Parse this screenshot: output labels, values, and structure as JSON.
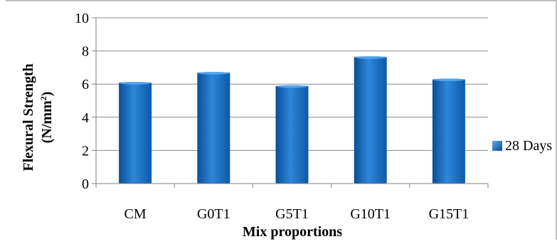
{
  "chart_data": {
    "type": "bar",
    "categories": [
      "CM",
      "G0T1",
      "G5T1",
      "G10T1",
      "G15T1"
    ],
    "series": [
      {
        "name": "28 Days",
        "values": [
          6.1,
          6.7,
          5.9,
          7.65,
          6.3
        ]
      }
    ],
    "title": "",
    "xlabel": "Mix proportions",
    "ylabel": {
      "line1": "Flexural Strength",
      "line2_base": "(N/mm",
      "line2_sup": "2",
      "line2_end": ")"
    },
    "ylim": [
      0,
      10
    ],
    "yticks": [
      "0",
      "2",
      "4",
      "6",
      "8",
      "10"
    ],
    "grid": true,
    "legend_position": "right",
    "colors": {
      "bar_dark": "#0a4f95",
      "bar_mid": "#1f78d1",
      "bar_light": "#5aa9f0",
      "grid": "#8c8c8c",
      "axis": "#7f7f7f",
      "frame": "#7f7f7f",
      "text": "#000000"
    }
  }
}
